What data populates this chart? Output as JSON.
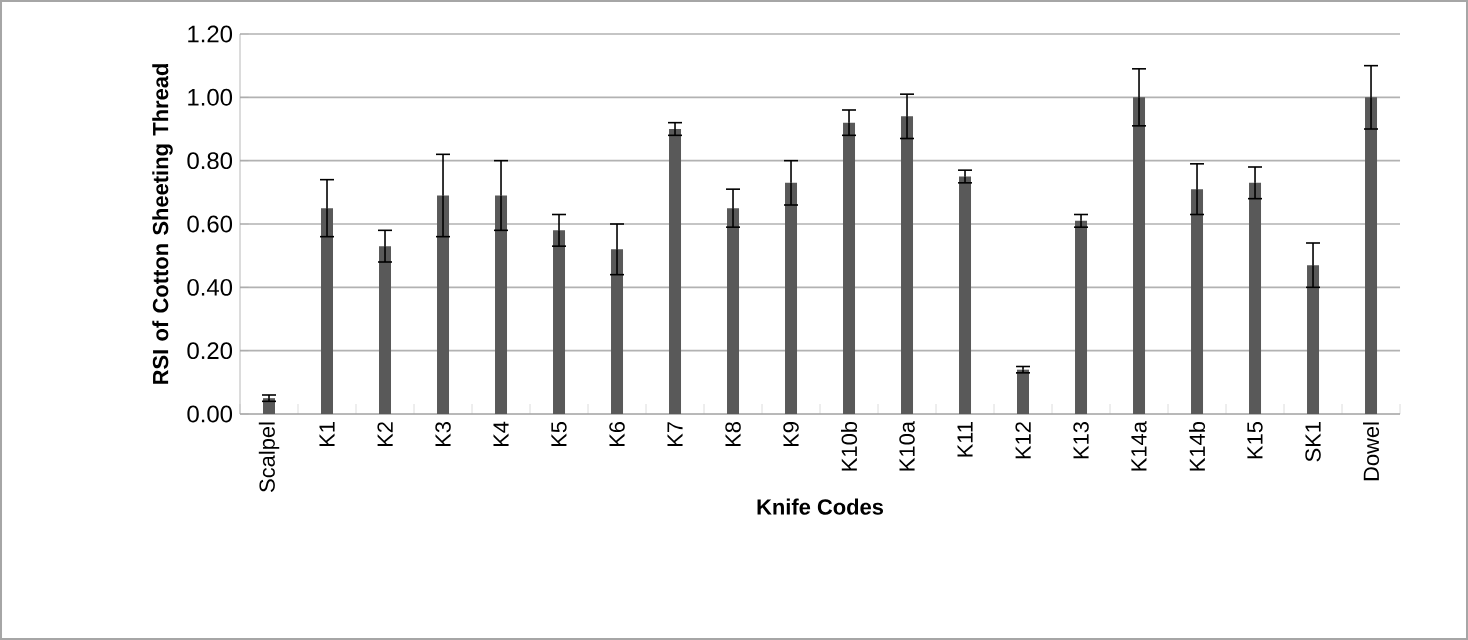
{
  "chart_data": {
    "type": "bar",
    "xlabel": "Knife Codes",
    "ylabel": "RSI of Cotton Sheeting Thread",
    "categories": [
      "Scalpel",
      "K1",
      "K2",
      "K3",
      "K4",
      "K5",
      "K6",
      "K7",
      "K8",
      "K9",
      "K10b",
      "K10a",
      "K11",
      "K12",
      "K13",
      "K14a",
      "K14b",
      "K15",
      "SK1",
      "Dowel"
    ],
    "values": [
      0.05,
      0.65,
      0.53,
      0.69,
      0.69,
      0.58,
      0.52,
      0.9,
      0.65,
      0.73,
      0.92,
      0.94,
      0.75,
      0.14,
      0.61,
      1.0,
      0.71,
      0.73,
      0.47,
      1.0
    ],
    "errors": [
      0.01,
      0.09,
      0.05,
      0.13,
      0.11,
      0.05,
      0.08,
      0.02,
      0.06,
      0.07,
      0.04,
      0.07,
      0.02,
      0.01,
      0.02,
      0.09,
      0.08,
      0.05,
      0.07,
      0.1
    ],
    "color": "#595959",
    "ylim": [
      0,
      1.2
    ],
    "yticks": [
      {
        "value": 0,
        "label": "0.00"
      },
      {
        "value": 0.2,
        "label": "0.20"
      },
      {
        "value": 0.4,
        "label": "0.40"
      },
      {
        "value": 0.6,
        "label": "0.60"
      },
      {
        "value": 0.8,
        "label": "0.80"
      },
      {
        "value": 1.0,
        "label": "1.00"
      },
      {
        "value": 1.2,
        "label": "1.20"
      }
    ],
    "grid": "y"
  }
}
